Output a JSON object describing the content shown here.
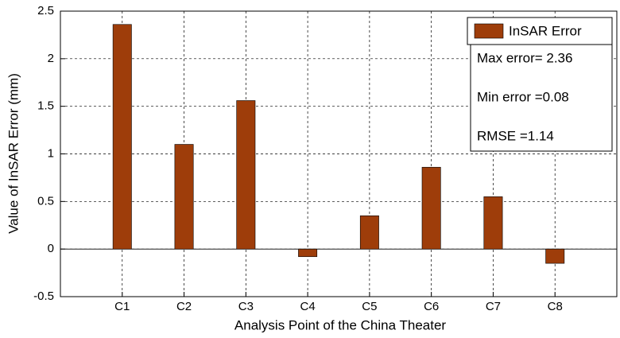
{
  "chart_data": {
    "type": "bar",
    "xlabel": "Analysis Point of the China Theater",
    "ylabel": "Value of InSAR Error (mm)",
    "categories": [
      "C1",
      "C2",
      "C3",
      "C4",
      "C5",
      "C6",
      "C7",
      "C8"
    ],
    "series": [
      {
        "name": "InSAR Error",
        "color": "#9e3d0a",
        "values": [
          2.36,
          1.1,
          1.56,
          -0.08,
          0.35,
          0.86,
          0.55,
          -0.15
        ]
      }
    ],
    "ylim": [
      -0.5,
      2.5
    ],
    "yticks": [
      -0.5,
      0,
      0.5,
      1,
      1.5,
      2,
      2.5
    ],
    "grid": true,
    "legend": "upper right",
    "annotations": [
      "Max error= 2.36",
      "Min error =0.08",
      "RMSE =1.14"
    ]
  }
}
